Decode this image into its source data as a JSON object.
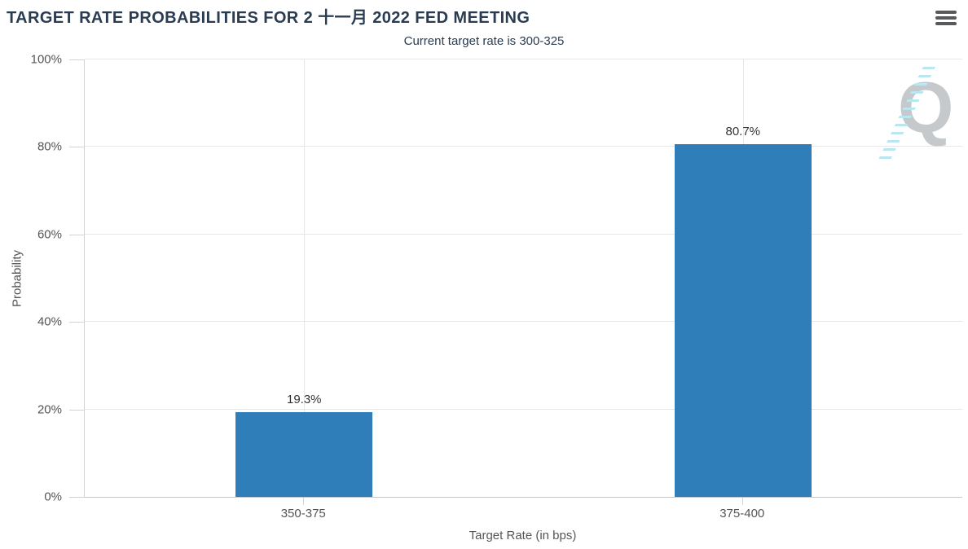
{
  "header": {
    "menu_icon": "hamburger-icon"
  },
  "watermark": {
    "letter": "Q"
  },
  "chart_data": {
    "type": "bar",
    "title": "TARGET RATE PROBABILITIES FOR 2 十一月 2022 FED MEETING",
    "subtitle": "Current target rate is 300-325",
    "categories": [
      "350-375",
      "375-400"
    ],
    "values": [
      19.3,
      80.7
    ],
    "data_labels": [
      "19.3%",
      "80.7%"
    ],
    "xlabel": "Target Rate (in bps)",
    "ylabel": "Probability",
    "ylim": [
      0,
      100
    ],
    "yticks": [
      "0%",
      "20%",
      "40%",
      "60%",
      "80%",
      "100%"
    ],
    "grid": true,
    "legend": "none",
    "bar_color": "#2f7eb9"
  },
  "colors": {
    "bar": "#2f7eb9",
    "title_text": "#2a3c52",
    "axis_text": "#555555",
    "data_label_text": "#333333",
    "gridline": "#e6e6e6",
    "axis_line": "#c9ced4",
    "menu_icon": "#58595b",
    "watermark_q": "#c6c9cb",
    "watermark_dashes": "#b9e6f0"
  }
}
